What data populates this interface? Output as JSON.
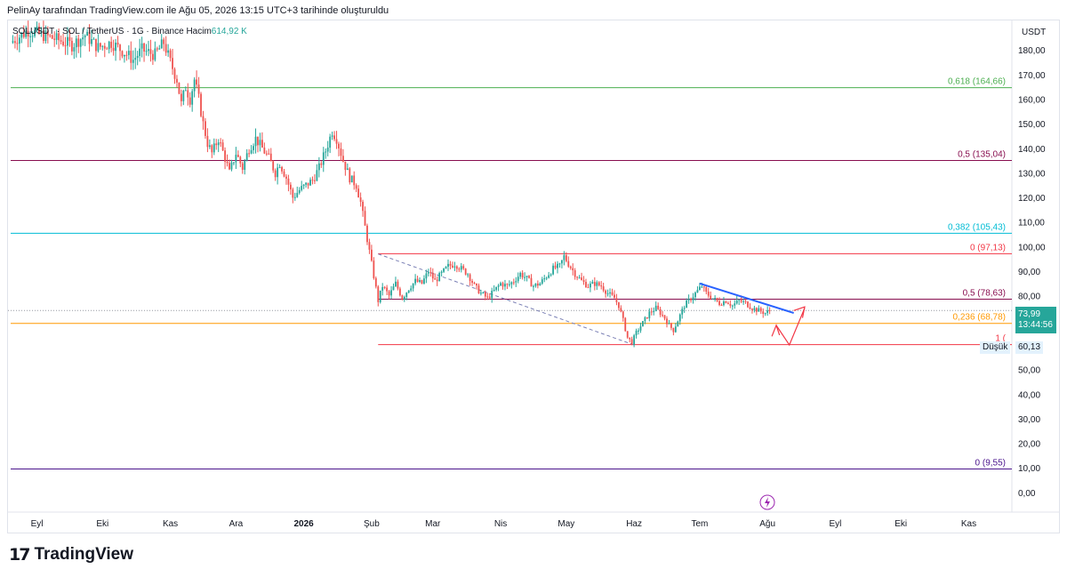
{
  "caption": "PelinAy tarafından TradingView.com ile Ağu 05, 2026 13:15 UTC+3 tarihinde oluşturuldu",
  "symbol_info": {
    "symbol": "SOLUSDT · SOL / TetherUS · 1G · Binance",
    "volume_label": "Hacim",
    "volume_value": "614,92 K"
  },
  "currency": "USDT",
  "price_tag": {
    "value": "73,99",
    "countdown": "13:44:56",
    "color": "#26a69a"
  },
  "low_tag": {
    "label": "Düşük",
    "value": "60,13"
  },
  "brand": {
    "mark": "17",
    "name": "TradingView"
  },
  "chart_data": {
    "type": "candlestick",
    "ylim": [
      -8,
      192
    ],
    "y_ticks": [
      {
        "v": 180,
        "label": "180,00"
      },
      {
        "v": 170,
        "label": "170,00"
      },
      {
        "v": 160,
        "label": "160,00"
      },
      {
        "v": 150,
        "label": "150,00"
      },
      {
        "v": 140,
        "label": "140,00"
      },
      {
        "v": 130,
        "label": "130,00"
      },
      {
        "v": 120,
        "label": "120,00"
      },
      {
        "v": 110,
        "label": "110,00"
      },
      {
        "v": 100,
        "label": "100,00"
      },
      {
        "v": 90,
        "label": "90,00"
      },
      {
        "v": 80,
        "label": "80,00"
      },
      {
        "v": 50,
        "label": "50,00"
      },
      {
        "v": 40,
        "label": "40,00"
      },
      {
        "v": 30,
        "label": "30,00"
      },
      {
        "v": 20,
        "label": "20,00"
      },
      {
        "v": 10,
        "label": "10,00"
      },
      {
        "v": 0,
        "label": "0,00"
      }
    ],
    "x_ticks": [
      {
        "d": 12,
        "label": "Eyl"
      },
      {
        "d": 42,
        "label": "Eki"
      },
      {
        "d": 73,
        "label": "Kas"
      },
      {
        "d": 103,
        "label": "Ara"
      },
      {
        "d": 134,
        "label": "2026"
      },
      {
        "d": 165,
        "label": "Şub"
      },
      {
        "d": 193,
        "label": "Mar"
      },
      {
        "d": 224,
        "label": "Nis"
      },
      {
        "d": 254,
        "label": "May"
      },
      {
        "d": 285,
        "label": "Haz"
      },
      {
        "d": 315,
        "label": "Tem"
      },
      {
        "d": 346,
        "label": "Ağu"
      },
      {
        "d": 377,
        "label": "Eyl"
      },
      {
        "d": 407,
        "label": "Eki"
      },
      {
        "d": 438,
        "label": "Kas"
      }
    ],
    "fib_levels": [
      {
        "v": 164.66,
        "label": "0,618 (164,66)",
        "color": "#4caf50",
        "from_day": 0
      },
      {
        "v": 135.04,
        "label": "0,5 (135,04)",
        "color": "#880e4f",
        "from_day": 0
      },
      {
        "v": 105.43,
        "label": "0,382 (105,43)",
        "color": "#00bcd4",
        "from_day": 0
      },
      {
        "v": 97.13,
        "label": "0 (97,13)",
        "color": "#f23645",
        "from_day": 168
      },
      {
        "v": 78.63,
        "label": "0,5 (78,63)",
        "color": "#880e4f",
        "from_day": 168
      },
      {
        "v": 68.78,
        "label": "0,236 (68,78)",
        "color": "#ff9800",
        "from_day": 0
      },
      {
        "v": 60.13,
        "label": "1 (",
        "color": "#f23645",
        "from_day": 168
      },
      {
        "v": 9.55,
        "label": "0 (9,55)",
        "color": "#4a148c",
        "from_day": 0
      }
    ],
    "current_price": 73.99,
    "close_path": [
      [
        0,
        183
      ],
      [
        8,
        188
      ],
      [
        15,
        186
      ],
      [
        22,
        184
      ],
      [
        28,
        182
      ],
      [
        34,
        186
      ],
      [
        40,
        181
      ],
      [
        46,
        183
      ],
      [
        52,
        179
      ],
      [
        56,
        176
      ],
      [
        60,
        180
      ],
      [
        66,
        178
      ],
      [
        70,
        183
      ],
      [
        73,
        175
      ],
      [
        76,
        168
      ],
      [
        78,
        158
      ],
      [
        80,
        165
      ],
      [
        82,
        160
      ],
      [
        84,
        168
      ],
      [
        86,
        160
      ],
      [
        88,
        150
      ],
      [
        90,
        142
      ],
      [
        92,
        138
      ],
      [
        95,
        144
      ],
      [
        98,
        136
      ],
      [
        100,
        130
      ],
      [
        103,
        138
      ],
      [
        106,
        132
      ],
      [
        109,
        140
      ],
      [
        112,
        144
      ],
      [
        115,
        140
      ],
      [
        118,
        136
      ],
      [
        121,
        130
      ],
      [
        123,
        134
      ],
      [
        126,
        128
      ],
      [
        129,
        120
      ],
      [
        132,
        123
      ],
      [
        135,
        125
      ],
      [
        138,
        127
      ],
      [
        141,
        132
      ],
      [
        144,
        139
      ],
      [
        147,
        147
      ],
      [
        149,
        144
      ],
      [
        152,
        135
      ],
      [
        155,
        128
      ],
      [
        158,
        125
      ],
      [
        160,
        118
      ],
      [
        162,
        108
      ],
      [
        164,
        98
      ],
      [
        166,
        88
      ],
      [
        168,
        78
      ],
      [
        170,
        84
      ],
      [
        173,
        80
      ],
      [
        176,
        85
      ],
      [
        179,
        79
      ],
      [
        182,
        83
      ],
      [
        185,
        86
      ],
      [
        188,
        85
      ],
      [
        191,
        90
      ],
      [
        194,
        86
      ],
      [
        197,
        89
      ],
      [
        200,
        92
      ],
      [
        203,
        93
      ],
      [
        206,
        91
      ],
      [
        209,
        89
      ],
      [
        212,
        84
      ],
      [
        215,
        81
      ],
      [
        218,
        79
      ],
      [
        221,
        82
      ],
      [
        224,
        85
      ],
      [
        227,
        84
      ],
      [
        230,
        86
      ],
      [
        233,
        89
      ],
      [
        236,
        87
      ],
      [
        239,
        84
      ],
      [
        242,
        85
      ],
      [
        245,
        88
      ],
      [
        248,
        91
      ],
      [
        251,
        92
      ],
      [
        253,
        96
      ],
      [
        255,
        93
      ],
      [
        258,
        89
      ],
      [
        261,
        86
      ],
      [
        264,
        84
      ],
      [
        267,
        85
      ],
      [
        270,
        84
      ],
      [
        273,
        81
      ],
      [
        276,
        79
      ],
      [
        278,
        76
      ],
      [
        280,
        70
      ],
      [
        282,
        63
      ],
      [
        284,
        61
      ],
      [
        286,
        65
      ],
      [
        289,
        69
      ],
      [
        292,
        73
      ],
      [
        295,
        75
      ],
      [
        297,
        73
      ],
      [
        299,
        71
      ],
      [
        301,
        68
      ],
      [
        303,
        66
      ],
      [
        305,
        70
      ],
      [
        308,
        76
      ],
      [
        311,
        79
      ],
      [
        314,
        82
      ],
      [
        316,
        84
      ],
      [
        318,
        81
      ],
      [
        321,
        79
      ],
      [
        324,
        77
      ],
      [
        327,
        78
      ],
      [
        330,
        76
      ],
      [
        333,
        78
      ],
      [
        336,
        77
      ],
      [
        339,
        75
      ],
      [
        342,
        74
      ],
      [
        345,
        73
      ],
      [
        347,
        74
      ]
    ]
  }
}
